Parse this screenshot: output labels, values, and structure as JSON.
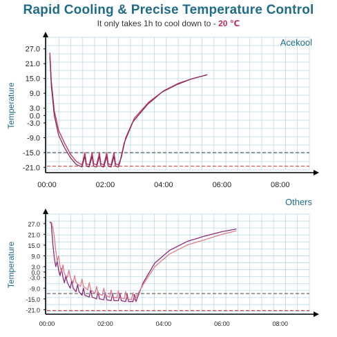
{
  "header": {
    "title": "Rapid Cooling & Precise Temperature Control",
    "subtitle_prefix": "It only takes 1h to cool down to - ",
    "subtitle_value": "20 ℃"
  },
  "colors": {
    "title": "#1f6b8a",
    "grid": "#b8d8e4",
    "line_primary": "#c0305a",
    "line_secondary": "#8a2a5a",
    "others_line_a": "#8a2a7a",
    "others_line_b": "#e07a8a",
    "dash_black": "#555555",
    "dash_red": "#d03030"
  },
  "chart_data": [
    {
      "type": "line",
      "panel_label": "Acekool",
      "ylabel": "Temperature",
      "x_tick_labels": [
        "00:00",
        "02:00",
        "04:00",
        "06:00",
        "08:00"
      ],
      "x_ticks_hours": [
        0,
        2,
        4,
        6,
        8
      ],
      "y_tick_labels": [
        "27.0",
        "21.0",
        "15.0",
        "9.0",
        "3.0",
        "0.0",
        "-3.0",
        "-9.0",
        "-15.0",
        "-21.0"
      ],
      "y_ticks": [
        27,
        21,
        15,
        9,
        3,
        0,
        -3,
        -9,
        -15,
        -21
      ],
      "xlim_hours": [
        0,
        9
      ],
      "ylim": [
        -22,
        30
      ],
      "reference_lines": [
        -15,
        -20.5
      ],
      "series": [
        {
          "x": [
            0.1,
            0.15,
            0.25,
            0.4,
            0.6,
            0.8,
            1.0,
            1.2,
            1.3,
            1.35,
            1.45,
            1.55,
            1.6,
            1.7,
            1.8,
            1.85,
            1.95,
            2.05,
            2.1,
            2.2,
            2.3,
            2.35,
            2.45,
            2.55,
            2.7,
            3.0,
            3.5,
            4.0,
            4.5,
            5.0,
            5.5
          ],
          "y": [
            25.5,
            14,
            2,
            -6,
            -11,
            -15.5,
            -18.5,
            -20,
            -15,
            -19.5,
            -20,
            -15,
            -19.5,
            -20,
            -15,
            -19.5,
            -20,
            -15,
            -19.5,
            -20,
            -15,
            -19.5,
            -20,
            -17,
            -9,
            -1,
            5.5,
            10,
            13,
            15,
            16.5
          ]
        },
        {
          "x": [
            0.1,
            0.15,
            0.25,
            0.4,
            0.6,
            0.8,
            1.0,
            1.2,
            1.3,
            1.35,
            1.45,
            1.55,
            1.6,
            1.7,
            1.8,
            1.85,
            1.95,
            2.05,
            2.1,
            2.2,
            2.3,
            2.35,
            2.45,
            2.5,
            2.65,
            2.95,
            3.45,
            3.95,
            4.45,
            4.95,
            5.5
          ],
          "y": [
            24,
            12,
            0,
            -8,
            -13,
            -17,
            -19.8,
            -20.8,
            -16.5,
            -20.5,
            -20.8,
            -16.5,
            -20.5,
            -20.8,
            -16.5,
            -20.5,
            -20.8,
            -16.5,
            -20.5,
            -20.8,
            -16.5,
            -20.5,
            -20.8,
            -19,
            -11,
            -2.5,
            4.5,
            9.5,
            12.5,
            14.8,
            16.5
          ]
        }
      ]
    },
    {
      "type": "line",
      "panel_label": "Others",
      "ylabel": "Temperature",
      "x_tick_labels": [
        "00:00",
        "02:00",
        "04:00",
        "06:00",
        "08:00"
      ],
      "x_ticks_hours": [
        0,
        2,
        4,
        6,
        8
      ],
      "y_tick_labels": [
        "27.0",
        "21.0",
        "15.0",
        "9.0",
        "3.0",
        "0.0",
        "-3.0",
        "-9.0",
        "-15.0",
        "-21.0"
      ],
      "y_ticks": [
        27,
        21,
        15,
        9,
        3,
        0,
        -3,
        -9,
        -15,
        -21
      ],
      "xlim_hours": [
        0,
        9
      ],
      "ylim": [
        -22,
        30
      ],
      "reference_lines": [
        -12,
        -21.5
      ],
      "series": [
        {
          "x": [
            0.1,
            0.15,
            0.2,
            0.25,
            0.3,
            0.35,
            0.4,
            0.45,
            0.5,
            0.55,
            0.6,
            0.65,
            0.7,
            0.8,
            0.85,
            0.9,
            1.0,
            1.05,
            1.1,
            1.2,
            1.25,
            1.3,
            1.45,
            1.5,
            1.55,
            1.7,
            1.75,
            1.8,
            1.95,
            2.0,
            2.05,
            2.2,
            2.25,
            2.3,
            2.45,
            2.5,
            2.55,
            2.7,
            2.75,
            2.8,
            2.95,
            3.0,
            3.05,
            3.3,
            3.7,
            4.2,
            4.8,
            5.4,
            6.0,
            6.5
          ],
          "y": [
            28,
            27,
            16,
            8,
            3,
            6,
            1,
            -2,
            2,
            -3,
            -6,
            -2,
            -6,
            -9,
            -5,
            -9,
            -11,
            -7,
            -11,
            -13,
            -9,
            -13,
            -14,
            -10,
            -14,
            -15,
            -11,
            -15,
            -15.5,
            -11.5,
            -15.5,
            -16,
            -12,
            -16,
            -16,
            -12,
            -16,
            -16.5,
            -12.5,
            -16.5,
            -16.5,
            -12.5,
            -16.5,
            -6,
            5,
            12,
            17,
            20,
            22.5,
            24
          ]
        },
        {
          "x": [
            0.15,
            0.2,
            0.25,
            0.3,
            0.35,
            0.4,
            0.45,
            0.5,
            0.55,
            0.6,
            0.7,
            0.75,
            0.8,
            0.9,
            0.95,
            1.0,
            1.15,
            1.2,
            1.25,
            1.4,
            1.45,
            1.5,
            1.65,
            1.7,
            1.75,
            1.9,
            1.95,
            2.0,
            2.15,
            2.2,
            2.25,
            2.4,
            2.45,
            2.5,
            2.65,
            2.7,
            2.75,
            2.9,
            2.95,
            3.0,
            3.3,
            3.7,
            4.2,
            4.8,
            5.4,
            6.0,
            6.5
          ],
          "y": [
            28,
            25,
            20,
            12,
            6,
            9,
            3,
            0,
            4,
            -1,
            -3,
            1,
            -3,
            -6,
            -2,
            -6,
            -8,
            -4,
            -8,
            -10,
            -6,
            -10,
            -12,
            -8,
            -12,
            -13,
            -9,
            -13,
            -14,
            -10,
            -14,
            -14.5,
            -10.5,
            -14.5,
            -15,
            -11,
            -15,
            -15.5,
            -11.5,
            -15.5,
            -7,
            3,
            10,
            15,
            18,
            21,
            23
          ]
        }
      ]
    }
  ]
}
